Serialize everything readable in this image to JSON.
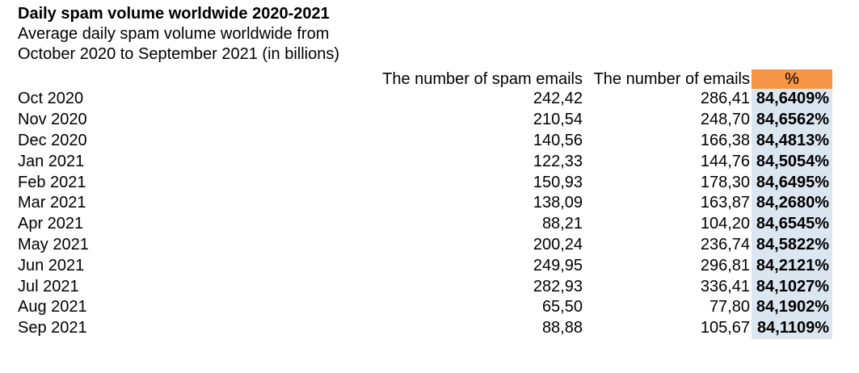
{
  "title": "Daily spam volume worldwide 2020-2021",
  "subtitle_line1": "Average daily spam volume worldwide from",
  "subtitle_line2": "October 2020 to September 2021 (in billions)",
  "colors": {
    "header_orange": "#F79646",
    "pct_blue": "#DCE6F1"
  },
  "table": {
    "headers": {
      "month": "",
      "spam": "The number of spam emails",
      "emails": "The number of emails",
      "pct": "%"
    },
    "rows": [
      {
        "month": "Oct 2020",
        "spam": "242,42",
        "emails": "286,41",
        "pct": "84,6409%"
      },
      {
        "month": "Nov 2020",
        "spam": "210,54",
        "emails": "248,70",
        "pct": "84,6562%"
      },
      {
        "month": "Dec 2020",
        "spam": "140,56",
        "emails": "166,38",
        "pct": "84,4813%"
      },
      {
        "month": "Jan 2021",
        "spam": "122,33",
        "emails": "144,76",
        "pct": "84,5054%"
      },
      {
        "month": "Feb 2021",
        "spam": "150,93",
        "emails": "178,30",
        "pct": "84,6495%"
      },
      {
        "month": "Mar 2021",
        "spam": "138,09",
        "emails": "163,87",
        "pct": "84,2680%"
      },
      {
        "month": "Apr 2021",
        "spam": "88,21",
        "emails": "104,20",
        "pct": "84,6545%"
      },
      {
        "month": "May 2021",
        "spam": "200,24",
        "emails": "236,74",
        "pct": "84,5822%"
      },
      {
        "month": "Jun 2021",
        "spam": "249,95",
        "emails": "296,81",
        "pct": "84,2121%"
      },
      {
        "month": "Jul 2021",
        "spam": "282,93",
        "emails": "336,41",
        "pct": "84,1027%"
      },
      {
        "month": "Aug 2021",
        "spam": "65,50",
        "emails": "77,80",
        "pct": "84,1902%"
      },
      {
        "month": "Sep 2021",
        "spam": "88,88",
        "emails": "105,67",
        "pct": "84,1109%"
      }
    ]
  },
  "chart_data": {
    "type": "table",
    "title": "Daily spam volume worldwide 2020-2021",
    "subtitle": "Average daily spam volume worldwide from October 2020 to September 2021 (in billions)",
    "categories": [
      "Oct 2020",
      "Nov 2020",
      "Dec 2020",
      "Jan 2021",
      "Feb 2021",
      "Mar 2021",
      "Apr 2021",
      "May 2021",
      "Jun 2021",
      "Jul 2021",
      "Aug 2021",
      "Sep 2021"
    ],
    "series": [
      {
        "name": "The number of spam emails",
        "values": [
          242.42,
          210.54,
          140.56,
          122.33,
          150.93,
          138.09,
          88.21,
          200.24,
          249.95,
          282.93,
          65.5,
          88.88
        ]
      },
      {
        "name": "The number of emails",
        "values": [
          286.41,
          248.7,
          166.38,
          144.76,
          178.3,
          163.87,
          104.2,
          236.74,
          296.81,
          336.41,
          77.8,
          105.67
        ]
      },
      {
        "name": "%",
        "values": [
          84.6409,
          84.6562,
          84.4813,
          84.5054,
          84.6495,
          84.268,
          84.6545,
          84.5822,
          84.2121,
          84.1027,
          84.1902,
          84.1109
        ]
      }
    ],
    "units": "billions",
    "decimal_separator": ","
  }
}
